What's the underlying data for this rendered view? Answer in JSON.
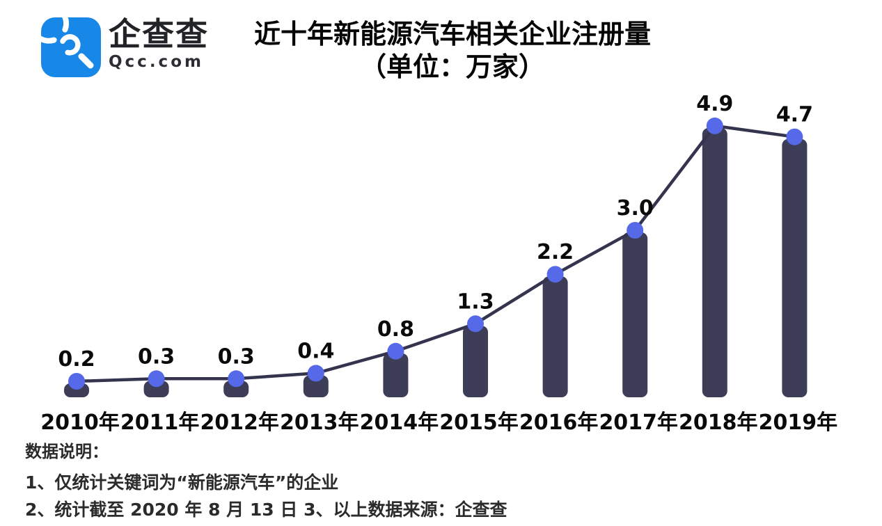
{
  "brand": {
    "name_cn": "企查查",
    "domain": "Qcc.com",
    "logo_icon": "qcc-magnifier-spiral",
    "logo_color": "#1787e8"
  },
  "title": {
    "line1": "近十年新能源汽车相关企业注册量",
    "line2": "（单位：万家）"
  },
  "notes": {
    "heading": "数据说明：",
    "lines": [
      "1、仅统计关键词为“新能源汽车”的企业",
      "2、统计截至 2020 年 8 月 13 日  3、以上数据来源：企查查"
    ]
  },
  "chart_data": {
    "type": "bar",
    "overlay": "line",
    "title": "近十年新能源汽车相关企业注册量",
    "subtitle": "（单位：万家）",
    "unit": "万家",
    "categories": [
      "2010年",
      "2011年",
      "2012年",
      "2013年",
      "2014年",
      "2015年",
      "2016年",
      "2017年",
      "2018年",
      "2019年"
    ],
    "values": [
      0.2,
      0.3,
      0.3,
      0.4,
      0.8,
      1.3,
      2.2,
      3.0,
      4.9,
      4.7
    ],
    "data_labels": [
      "0.2",
      "0.3",
      "0.3",
      "0.4",
      "0.8",
      "1.3",
      "2.2",
      "3.0",
      "4.9",
      "4.7"
    ],
    "xlabel": "",
    "ylabel": "",
    "ylim": [
      0,
      5.2
    ],
    "grid": false,
    "legend": "none",
    "colors": {
      "bar": "#3e3d58",
      "line": "#35344e",
      "dot": "#5669e8",
      "value_label": "#0a0a0a",
      "tick_label": "#0a0a0a"
    }
  }
}
